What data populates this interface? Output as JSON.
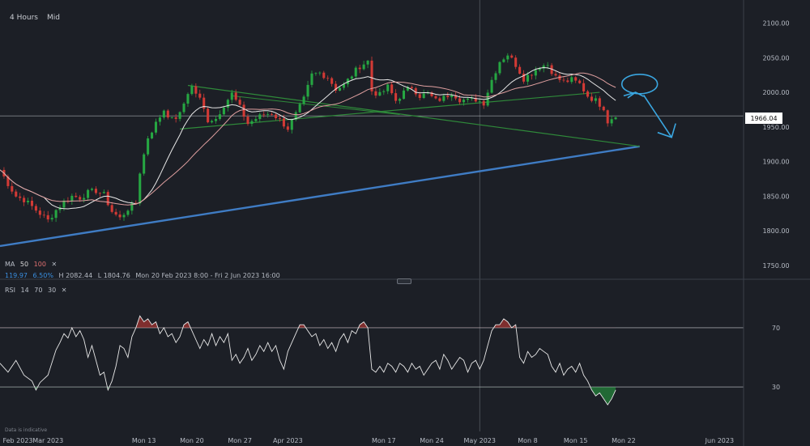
{
  "toolbar": {
    "interval": "4 Hours",
    "price_type": "Mid"
  },
  "legend": {
    "ma_label": "MA",
    "ma_p1": "50",
    "ma_p2": "100",
    "close_glyph": "✕",
    "stat1": "119.97",
    "stat2": "6.50%",
    "high": "H 2082.44",
    "low": "L 1804.76",
    "range": "Mon 20 Feb 2023 8:00 - Fri 2 Jun 2023 16:00",
    "rsi_label": "RSI",
    "rsi_p1": "14",
    "rsi_p2": "70",
    "rsi_p3": "30"
  },
  "last_price": "1966.04",
  "disclaimer": "Data is indicative",
  "colors": {
    "background": "#1c1f26",
    "up": "#26a642",
    "down": "#d23a35",
    "ma50": "#e8e8e8",
    "ma100": "#e0a0a0",
    "trend_blue": "#3f7cc4",
    "trend_green": "#2f8a3a",
    "annotation": "#3aa6e0",
    "ma_p1": "#d8d8d8",
    "ma_p2": "#e07070",
    "stat_blue": "#3a8fe0",
    "rsi_overbought": "#d23a35",
    "rsi_oversold": "#26a642"
  },
  "chart_data": [
    {
      "type": "candlestick",
      "title": "",
      "y_ticks": [
        2100,
        2050,
        2000,
        1950,
        1900,
        1850,
        1800,
        1750
      ],
      "y_tick_labels": [
        "2100.00",
        "2050.00",
        "2000.00",
        "1950.00",
        "1900.00",
        "1850.00",
        "1800.00",
        "1750.00"
      ],
      "ylim": [
        1730,
        2110
      ],
      "x_tick_labels": [
        "Feb 2023",
        "Mar 2023",
        "Mon 13",
        "Mon 20",
        "Mon 27",
        "Apr 2023",
        "Mon 17",
        "Mon 24",
        "May 2023",
        "Mon 8",
        "Mon 15",
        "Mon 22",
        "Jun 2023"
      ],
      "x_tick_positions": [
        0,
        12,
        36,
        48,
        60,
        72,
        96,
        108,
        120,
        132,
        144,
        156,
        180
      ],
      "x_range": [
        0,
        186
      ],
      "crosshair_bar": 120,
      "last_price": 1966.04,
      "close_path": [
        [
          0,
          1888
        ],
        [
          2,
          1868
        ],
        [
          4,
          1850
        ],
        [
          6,
          1845
        ],
        [
          8,
          1835
        ],
        [
          10,
          1825
        ],
        [
          12,
          1815
        ],
        [
          14,
          1830
        ],
        [
          16,
          1842
        ],
        [
          18,
          1850
        ],
        [
          20,
          1848
        ],
        [
          22,
          1855
        ],
        [
          24,
          1858
        ],
        [
          26,
          1852
        ],
        [
          28,
          1828
        ],
        [
          30,
          1818
        ],
        [
          32,
          1832
        ],
        [
          34,
          1840
        ],
        [
          35,
          1885
        ],
        [
          37,
          1935
        ],
        [
          39,
          1955
        ],
        [
          41,
          1975
        ],
        [
          43,
          1960
        ],
        [
          45,
          1968
        ],
        [
          47,
          2000
        ],
        [
          48,
          2008
        ],
        [
          50,
          1990
        ],
        [
          52,
          1960
        ],
        [
          54,
          1962
        ],
        [
          56,
          1982
        ],
        [
          58,
          1998
        ],
        [
          60,
          1978
        ],
        [
          62,
          1955
        ],
        [
          64,
          1962
        ],
        [
          66,
          1968
        ],
        [
          68,
          1970
        ],
        [
          70,
          1960
        ],
        [
          72,
          1948
        ],
        [
          74,
          1968
        ],
        [
          76,
          1990
        ],
        [
          78,
          2025
        ],
        [
          80,
          2028
        ],
        [
          82,
          2022
        ],
        [
          84,
          2005
        ],
        [
          86,
          2010
        ],
        [
          88,
          2025
        ],
        [
          90,
          2038
        ],
        [
          92,
          2045
        ],
        [
          93,
          2002
        ],
        [
          95,
          1996
        ],
        [
          97,
          2008
        ],
        [
          99,
          1988
        ],
        [
          101,
          2000
        ],
        [
          103,
          2008
        ],
        [
          105,
          1995
        ],
        [
          107,
          1998
        ],
        [
          109,
          1988
        ],
        [
          111,
          1992
        ],
        [
          113,
          2000
        ],
        [
          115,
          1990
        ],
        [
          117,
          1988
        ],
        [
          119,
          1990
        ],
        [
          121,
          1985
        ],
        [
          123,
          2018
        ],
        [
          125,
          2045
        ],
        [
          127,
          2055
        ],
        [
          129,
          2040
        ],
        [
          131,
          2020
        ],
        [
          133,
          2028
        ],
        [
          135,
          2038
        ],
        [
          137,
          2040
        ],
        [
          139,
          2022
        ],
        [
          141,
          2015
        ],
        [
          143,
          2018
        ],
        [
          145,
          2012
        ],
        [
          147,
          1995
        ],
        [
          149,
          1988
        ],
        [
          151,
          1978
        ],
        [
          152,
          1958
        ],
        [
          154,
          1968
        ]
      ],
      "rsi": {
        "ylim": [
          0,
          100
        ],
        "levels": [
          70,
          30
        ],
        "level_labels": [
          "70",
          "30"
        ],
        "values": [
          [
            0,
            46
          ],
          [
            2,
            40
          ],
          [
            4,
            48
          ],
          [
            6,
            38
          ],
          [
            8,
            34
          ],
          [
            9,
            28
          ],
          [
            10,
            33
          ],
          [
            12,
            38
          ],
          [
            14,
            55
          ],
          [
            15,
            60
          ],
          [
            16,
            66
          ],
          [
            17,
            63
          ],
          [
            18,
            70
          ],
          [
            19,
            64
          ],
          [
            20,
            68
          ],
          [
            21,
            62
          ],
          [
            22,
            50
          ],
          [
            23,
            58
          ],
          [
            24,
            48
          ],
          [
            25,
            38
          ],
          [
            26,
            40
          ],
          [
            27,
            28
          ],
          [
            28,
            34
          ],
          [
            29,
            44
          ],
          [
            30,
            58
          ],
          [
            31,
            56
          ],
          [
            32,
            50
          ],
          [
            33,
            64
          ],
          [
            34,
            70
          ],
          [
            35,
            78
          ],
          [
            36,
            74
          ],
          [
            37,
            76
          ],
          [
            38,
            72
          ],
          [
            39,
            74
          ],
          [
            40,
            66
          ],
          [
            41,
            70
          ],
          [
            42,
            64
          ],
          [
            43,
            66
          ],
          [
            44,
            60
          ],
          [
            45,
            64
          ],
          [
            46,
            72
          ],
          [
            47,
            74
          ],
          [
            48,
            68
          ],
          [
            49,
            62
          ],
          [
            50,
            56
          ],
          [
            51,
            62
          ],
          [
            52,
            58
          ],
          [
            53,
            66
          ],
          [
            54,
            58
          ],
          [
            55,
            64
          ],
          [
            56,
            60
          ],
          [
            57,
            66
          ],
          [
            58,
            48
          ],
          [
            59,
            52
          ],
          [
            60,
            46
          ],
          [
            61,
            50
          ],
          [
            62,
            56
          ],
          [
            63,
            48
          ],
          [
            64,
            52
          ],
          [
            65,
            58
          ],
          [
            66,
            54
          ],
          [
            67,
            60
          ],
          [
            68,
            54
          ],
          [
            69,
            58
          ],
          [
            70,
            48
          ],
          [
            71,
            42
          ],
          [
            72,
            54
          ],
          [
            73,
            60
          ],
          [
            74,
            66
          ],
          [
            75,
            72
          ],
          [
            76,
            72
          ],
          [
            77,
            68
          ],
          [
            78,
            64
          ],
          [
            79,
            66
          ],
          [
            80,
            58
          ],
          [
            81,
            62
          ],
          [
            82,
            56
          ],
          [
            83,
            60
          ],
          [
            84,
            54
          ],
          [
            85,
            62
          ],
          [
            86,
            66
          ],
          [
            87,
            60
          ],
          [
            88,
            68
          ],
          [
            89,
            66
          ],
          [
            90,
            72
          ],
          [
            91,
            74
          ],
          [
            92,
            70
          ],
          [
            93,
            42
          ],
          [
            94,
            40
          ],
          [
            95,
            44
          ],
          [
            96,
            40
          ],
          [
            97,
            46
          ],
          [
            98,
            44
          ],
          [
            99,
            40
          ],
          [
            100,
            46
          ],
          [
            101,
            44
          ],
          [
            102,
            40
          ],
          [
            103,
            46
          ],
          [
            104,
            42
          ],
          [
            105,
            44
          ],
          [
            106,
            38
          ],
          [
            107,
            42
          ],
          [
            108,
            46
          ],
          [
            109,
            48
          ],
          [
            110,
            42
          ],
          [
            111,
            52
          ],
          [
            112,
            48
          ],
          [
            113,
            42
          ],
          [
            114,
            46
          ],
          [
            115,
            50
          ],
          [
            116,
            48
          ],
          [
            117,
            40
          ],
          [
            118,
            46
          ],
          [
            119,
            48
          ],
          [
            120,
            42
          ],
          [
            121,
            48
          ],
          [
            122,
            58
          ],
          [
            123,
            68
          ],
          [
            124,
            72
          ],
          [
            125,
            72
          ],
          [
            126,
            76
          ],
          [
            127,
            74
          ],
          [
            128,
            70
          ],
          [
            129,
            72
          ],
          [
            130,
            50
          ],
          [
            131,
            46
          ],
          [
            132,
            54
          ],
          [
            133,
            50
          ],
          [
            134,
            52
          ],
          [
            135,
            56
          ],
          [
            136,
            54
          ],
          [
            137,
            52
          ],
          [
            138,
            44
          ],
          [
            139,
            40
          ],
          [
            140,
            46
          ],
          [
            141,
            38
          ],
          [
            142,
            42
          ],
          [
            143,
            44
          ],
          [
            144,
            40
          ],
          [
            145,
            46
          ],
          [
            146,
            38
          ],
          [
            147,
            34
          ],
          [
            148,
            28
          ],
          [
            149,
            24
          ],
          [
            150,
            26
          ],
          [
            151,
            22
          ],
          [
            152,
            18
          ],
          [
            153,
            22
          ],
          [
            154,
            28
          ]
        ]
      }
    }
  ]
}
